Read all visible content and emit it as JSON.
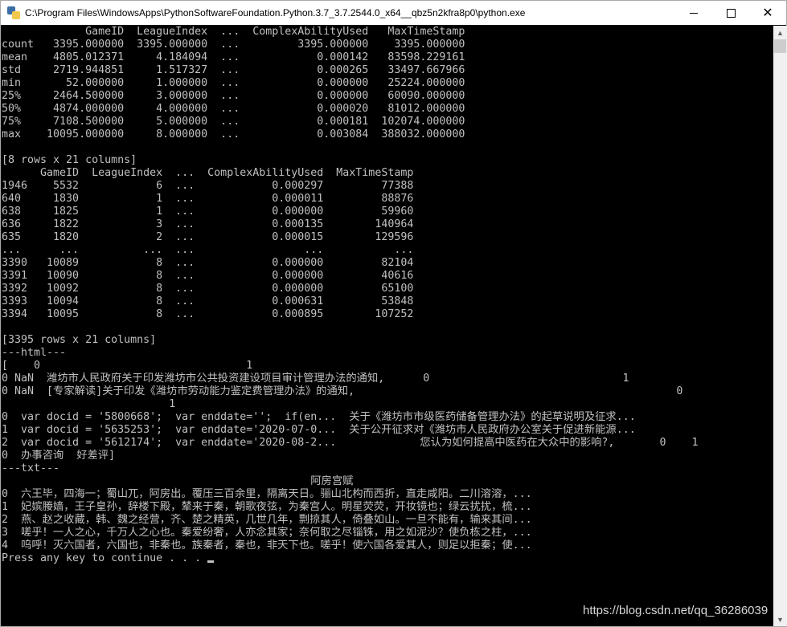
{
  "window": {
    "title": "C:\\Program Files\\WindowsApps\\PythonSoftwareFoundation.Python.3.7_3.7.2544.0_x64__qbz5n2kfra8p0\\python.exe",
    "icon": "python-icon",
    "controls": {
      "minimize": "minimize-icon",
      "maximize": "maximize-icon",
      "close": "close-icon"
    }
  },
  "console": {
    "lines": [
      "             GameID  LeagueIndex  ...  ComplexAbilityUsed   MaxTimeStamp",
      "count   3395.000000  3395.000000  ...         3395.000000    3395.000000",
      "mean    4805.012371     4.184094  ...            0.000142   83598.229161",
      "std     2719.944851     1.517327  ...            0.000265   33497.667966",
      "min       52.000000     1.000000  ...            0.000000   25224.000000",
      "25%     2464.500000     3.000000  ...            0.000000   60090.000000",
      "50%     4874.000000     4.000000  ...            0.000020   81012.000000",
      "75%     7108.500000     5.000000  ...            0.000181  102074.000000",
      "max    10095.000000     8.000000  ...            0.003084  388032.000000",
      "",
      "[8 rows x 21 columns]",
      "      GameID  LeagueIndex  ...  ComplexAbilityUsed  MaxTimeStamp",
      "1946    5532            6  ...            0.000297         77388",
      "640     1830            1  ...            0.000011         88876",
      "638     1825            1  ...            0.000000         59960",
      "636     1822            3  ...            0.000135        140964",
      "635     1820            2  ...            0.000015        129596",
      "...      ...          ...  ...                 ...           ...",
      "3390   10089            8  ...            0.000000         82104",
      "3391   10090            8  ...            0.000000         40616",
      "3392   10092            8  ...            0.000000         65100",
      "3393   10094            8  ...            0.000631         53848",
      "3394   10095            8  ...            0.000895        107252",
      "",
      "[3395 rows x 21 columns]",
      "---html---",
      "[    0                                1",
      "0 NaN  潍坊市人民政府关于印发潍坊市公共投资建设项目审计管理办法的通知,      0                              1",
      "0 NaN  [专家解读]关于印发《潍坊市劳动能力鉴定费管理办法》的通知,                                                  0",
      "                          1",
      "0  var docid = '5800668';  var enddate='';  if(en...  关于《潍坊市市级医药储备管理办法》的起草说明及征求...",
      "1  var docid = '5635253';  var enddate='2020-07-0...  关于公开征求对《潍坊市人民政府办公室关于促进新能源...",
      "2  var docid = '5612174';  var enddate='2020-08-2...             您认为如何提高中医药在大众中的影响?,       0    1",
      "0  办事咨询  好差评]",
      "---txt---",
      "                                                阿房宫赋",
      "0  六王毕，四海一；蜀山兀，阿房出。覆压三百余里，隔离天日。骊山北构而西折，直走咸阳。二川溶溶，...",
      "1  妃嫔媵嫱，王子皇孙，辞楼下殿，辇来于秦，朝歌夜弦，为秦宫人。明星荧荧，开妆镜也；绿云扰扰，梳...",
      "2  燕、赵之收藏，韩、魏之经营，齐、楚之精英，几世几年，剽掠其人，倚叠如山。一旦不能有，输来其间...",
      "3  嗟乎！一人之心，千万人之心也。秦爱纷奢，人亦念其家；奈何取之尽锱铢，用之如泥沙？使负栋之柱，...",
      "4  呜呼！灭六国者，六国也，非秦也。族秦者，秦也，非天下也。嗟乎！使六国各爱其人，则足以拒秦；使...",
      "Press any key to continue . . . "
    ]
  },
  "watermark": "https://blog.csdn.net/qq_36286039",
  "colors": {
    "console_bg": "#000000",
    "console_fg": "#c0c0c0"
  }
}
